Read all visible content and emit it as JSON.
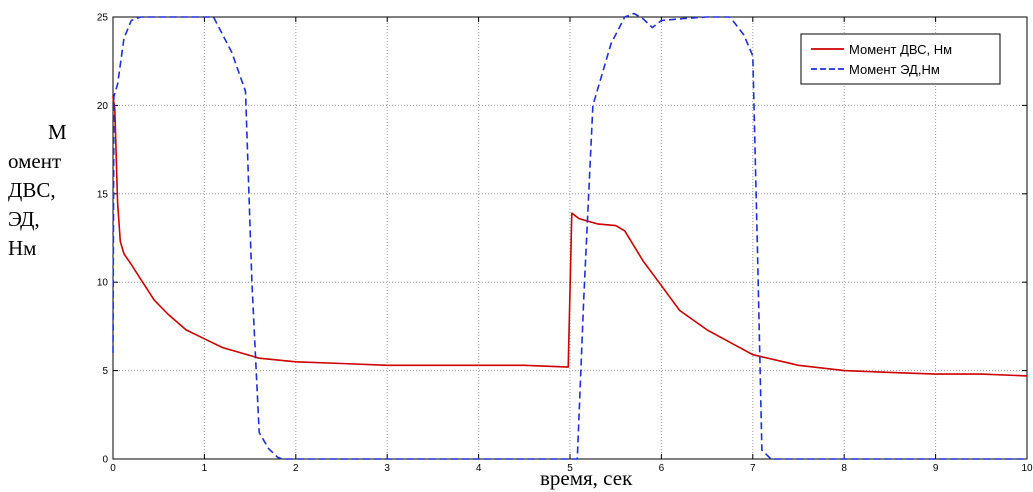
{
  "chart_data": {
    "type": "line",
    "title": "",
    "xlabel": "время, сек",
    "ylabel_lines": [
      "М",
      "омент",
      "ДВС,",
      "ЭД,",
      "Нм"
    ],
    "xlim": [
      0,
      10
    ],
    "ylim": [
      0,
      25
    ],
    "xticks": [
      0,
      1,
      2,
      3,
      4,
      5,
      6,
      7,
      8,
      9,
      10
    ],
    "yticks": [
      0,
      5,
      10,
      15,
      20,
      25
    ],
    "grid": true,
    "legend_position": "top-right",
    "series": [
      {
        "name": "Момент ДВС, Нм",
        "color": "#cc0000",
        "style": "solid",
        "x": [
          0,
          0.02,
          0.05,
          0.08,
          0.12,
          0.2,
          0.3,
          0.45,
          0.6,
          0.8,
          1.0,
          1.2,
          1.4,
          1.6,
          2.0,
          2.5,
          3.0,
          3.5,
          4.0,
          4.5,
          4.98,
          5.0,
          5.02,
          5.1,
          5.3,
          5.5,
          5.6,
          5.8,
          6.0,
          6.2,
          6.5,
          7.0,
          7.5,
          8.0,
          8.5,
          9.0,
          9.5,
          10.0
        ],
        "y": [
          20.5,
          19.8,
          14.5,
          12.3,
          11.6,
          11.0,
          10.2,
          9.0,
          8.2,
          7.3,
          6.8,
          6.3,
          6.0,
          5.7,
          5.5,
          5.4,
          5.3,
          5.3,
          5.3,
          5.3,
          5.2,
          9.5,
          13.9,
          13.6,
          13.3,
          13.2,
          12.9,
          11.2,
          9.8,
          8.4,
          7.3,
          5.9,
          5.3,
          5.0,
          4.9,
          4.8,
          4.8,
          4.7
        ]
      },
      {
        "name": "Момент ЭД,Нм",
        "color": "#1f2fd6",
        "style": "dashed",
        "x": [
          0,
          0.01,
          0.05,
          0.12,
          0.2,
          0.3,
          0.5,
          1.0,
          1.1,
          1.3,
          1.45,
          1.52,
          1.6,
          1.7,
          1.8,
          1.85,
          2.0,
          3.0,
          4.0,
          5.0,
          5.08,
          5.15,
          5.25,
          5.45,
          5.6,
          5.7,
          5.8,
          5.9,
          6.0,
          6.2,
          6.5,
          6.75,
          6.9,
          7.0,
          7.05,
          7.1,
          7.2,
          8.0,
          9.0,
          10.0
        ],
        "y": [
          6.0,
          20.5,
          21.2,
          23.8,
          24.8,
          25.0,
          25.0,
          25.0,
          25.0,
          23.0,
          20.8,
          10.0,
          1.5,
          0.6,
          0.1,
          0.0,
          0.0,
          0.0,
          0.0,
          0.0,
          0.0,
          9.0,
          20.0,
          23.5,
          25.0,
          25.2,
          24.9,
          24.4,
          24.8,
          24.9,
          25.0,
          25.0,
          24.0,
          22.8,
          12.0,
          0.5,
          0.0,
          0.0,
          0.0,
          0.0
        ]
      }
    ]
  }
}
